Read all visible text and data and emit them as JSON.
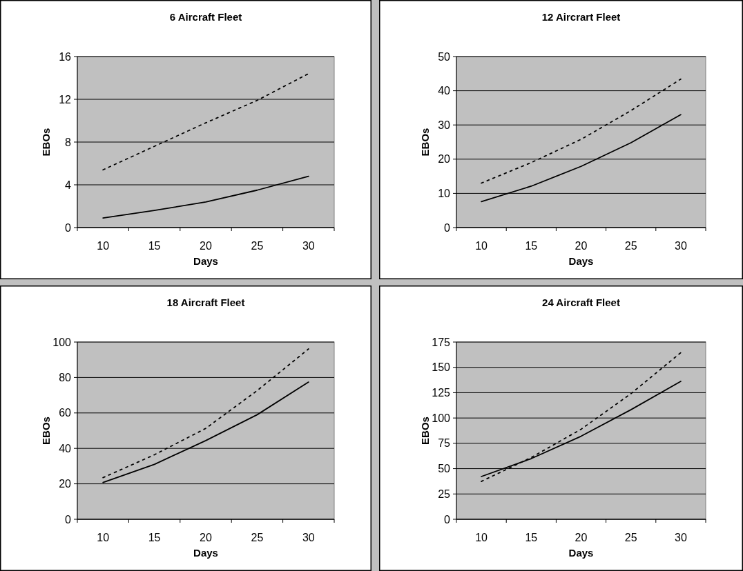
{
  "chart_data": [
    {
      "type": "line",
      "title": "6 Aircraft Fleet",
      "xlabel": "Days",
      "ylabel": "EBOs",
      "categories": [
        "10",
        "15",
        "20",
        "25",
        "30"
      ],
      "ylim": [
        0,
        16
      ],
      "yticks": [
        0,
        4,
        8,
        12,
        16
      ],
      "grid": "y",
      "series": [
        {
          "color": "#000000",
          "line_style": "solid",
          "values": [
            0.9,
            1.6,
            2.4,
            3.5,
            4.8
          ]
        },
        {
          "color": "#000000",
          "line_style": "dotted",
          "values": [
            5.4,
            7.6,
            9.8,
            11.9,
            14.4
          ]
        }
      ]
    },
    {
      "type": "line",
      "title": "12 Aircrart Fleet",
      "xlabel": "Days",
      "ylabel": "EBOs",
      "categories": [
        "10",
        "15",
        "20",
        "25",
        "30"
      ],
      "ylim": [
        0,
        50
      ],
      "yticks": [
        0,
        10,
        20,
        30,
        40,
        50
      ],
      "grid": "y",
      "series": [
        {
          "color": "#000000",
          "line_style": "solid",
          "values": [
            7.6,
            12.1,
            17.9,
            24.8,
            33
          ]
        },
        {
          "color": "#000000",
          "line_style": "dotted",
          "values": [
            13,
            19,
            25.8,
            34.2,
            43.4
          ]
        }
      ]
    },
    {
      "type": "line",
      "title": "18 Aircraft Fleet",
      "xlabel": "Days",
      "ylabel": "EBOs",
      "categories": [
        "10",
        "15",
        "20",
        "25",
        "30"
      ],
      "ylim": [
        0,
        100
      ],
      "yticks": [
        0,
        20,
        40,
        60,
        80,
        100
      ],
      "grid": "y",
      "series": [
        {
          "color": "#000000",
          "line_style": "solid",
          "values": [
            20.8,
            31,
            44.4,
            59,
            77.4
          ]
        },
        {
          "color": "#000000",
          "line_style": "dotted",
          "values": [
            23.5,
            36.4,
            51.3,
            72.6,
            96.1
          ]
        }
      ]
    },
    {
      "type": "line",
      "title": "24 Aircraft Fleet",
      "xlabel": "Days",
      "ylabel": "EBOs",
      "categories": [
        "10",
        "15",
        "20",
        "25",
        "30"
      ],
      "ylim": [
        0,
        175
      ],
      "yticks": [
        0,
        25,
        50,
        75,
        100,
        125,
        150,
        175
      ],
      "grid": "y",
      "series": [
        {
          "color": "#000000",
          "line_style": "solid",
          "values": [
            42.2,
            59.9,
            82,
            108.2,
            136.2
          ]
        },
        {
          "color": "#000000",
          "line_style": "dotted",
          "values": [
            37.4,
            61,
            88.9,
            124,
            164.5
          ]
        }
      ]
    }
  ]
}
